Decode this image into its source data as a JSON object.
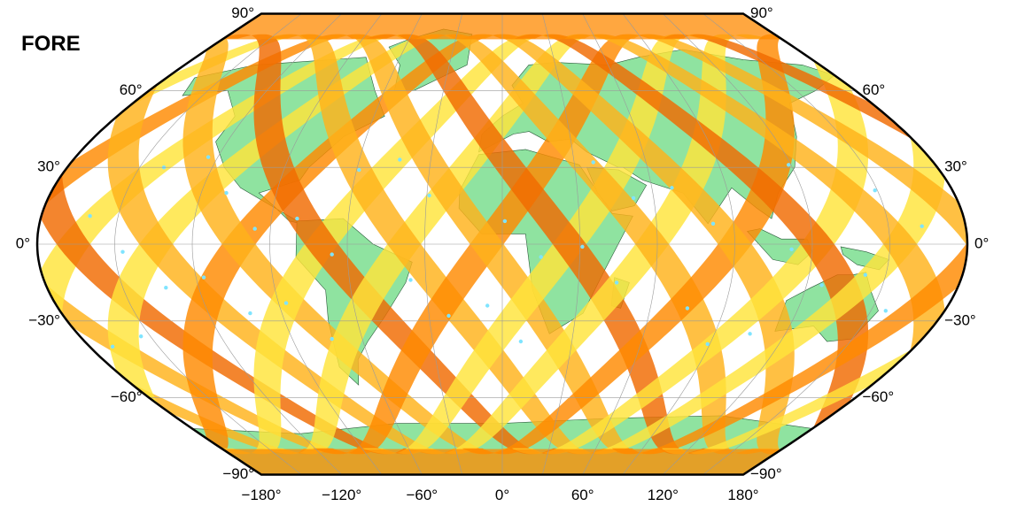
{
  "map": {
    "title": "FORE",
    "projection": "winkel-tripel-like",
    "colors": {
      "ocean": "#ffffff",
      "land": "#8fe3a0",
      "swath_light": "#ffe43a",
      "swath_mid": "#ffb21a",
      "swath_dark": "#ff8a00",
      "swath_hot": "#f06a00",
      "low_value": "#7fe4ff",
      "frame": "#000000",
      "grid": "#9a9a9a"
    },
    "lat_labels_left": [
      "90°",
      "60°",
      "30°",
      "0°",
      "−30°",
      "−60°",
      "−90°"
    ],
    "lat_labels_right": [
      "90°",
      "60°",
      "30°",
      "0°",
      "−30°",
      "−60°",
      "−90°"
    ],
    "lon_labels": [
      "−180°",
      "−120°",
      "−60°",
      "0°",
      "60°",
      "120°",
      "180°"
    ]
  }
}
